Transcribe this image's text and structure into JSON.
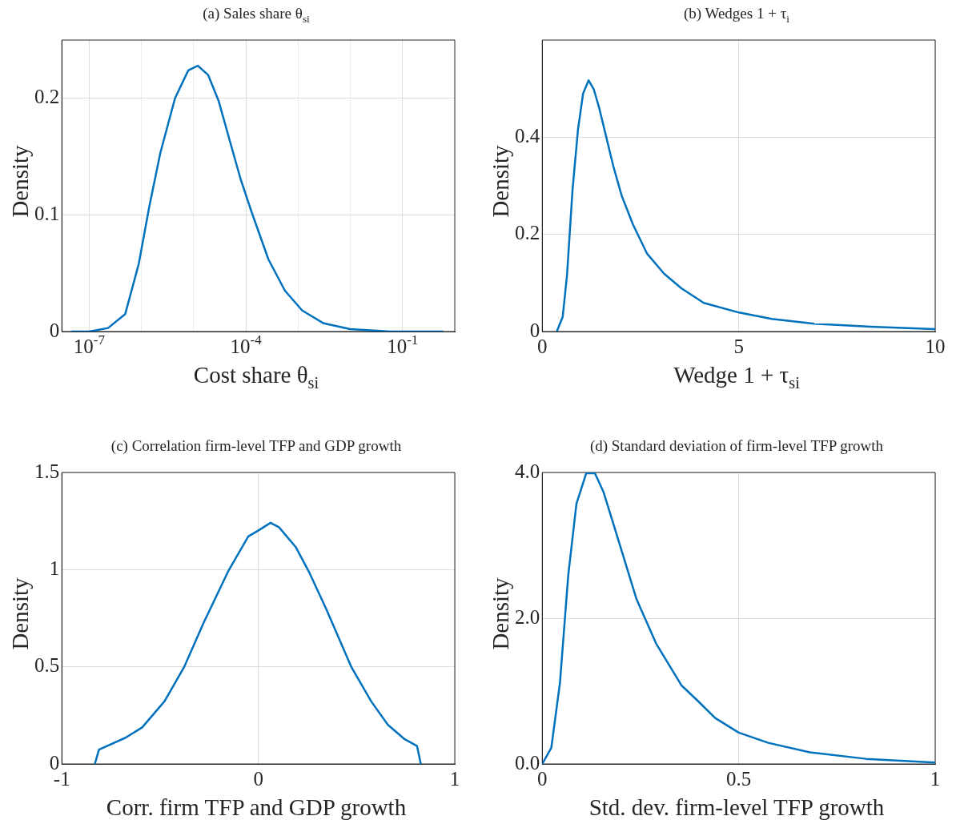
{
  "chart_data": [
    {
      "type": "line",
      "title": "(a) Sales share θ$_{si}$",
      "xlabel": "Cost share θ$_{si}$",
      "ylabel": "Density",
      "log": "x",
      "grid": true,
      "color": "#0072bd",
      "x": [
        4.5e-08,
        1e-07,
        2.3e-07,
        4.9e-07,
        8.9e-07,
        1.4e-06,
        2.3e-06,
        4.4e-06,
        7.9e-06,
        1.2e-05,
        1.9e-05,
        3e-05,
        4.9e-05,
        7.9e-05,
        0.00013,
        0.00027,
        0.00056,
        0.0012,
        0.0031,
        0.01,
        0.058,
        0.6
      ],
      "values": [
        0,
        0,
        0.003,
        0.015,
        0.058,
        0.106,
        0.153,
        0.2,
        0.224,
        0.228,
        0.22,
        0.198,
        0.164,
        0.131,
        0.102,
        0.062,
        0.035,
        0.018,
        0.007,
        0.002,
        0,
        0
      ],
      "xlim": [
        3.2e-08,
        1
      ],
      "xticks": [
        {
          "value": 1e-07,
          "label": "10$^{-7}$"
        },
        {
          "value": 1e-06,
          "label": null
        },
        {
          "value": 1e-05,
          "label": null
        },
        {
          "value": 0.0001,
          "label": "10$^{-4}$"
        },
        {
          "value": 0.001,
          "label": null
        },
        {
          "value": 0.01,
          "label": null
        },
        {
          "value": 0.1,
          "label": "10$^{-1}$"
        }
      ],
      "ylim": [
        0,
        0.25
      ],
      "yticks": [
        0,
        0.1,
        0.2
      ]
    },
    {
      "type": "line",
      "title": "(b) Wedges 1 + τ$_{i}$",
      "xlabel": "Wedge 1 + τ$_{si}$",
      "ylabel": "Density",
      "grid": true,
      "color": "#0072bd",
      "x": [
        0.37,
        0.52,
        0.63,
        0.77,
        0.91,
        1.04,
        1.18,
        1.31,
        1.45,
        1.63,
        1.81,
        2.02,
        2.31,
        2.67,
        3.1,
        3.54,
        4.11,
        5.01,
        5.84,
        6.92,
        8.36,
        10
      ],
      "values": [
        0,
        0.03,
        0.116,
        0.291,
        0.416,
        0.49,
        0.517,
        0.499,
        0.46,
        0.4,
        0.34,
        0.28,
        0.22,
        0.16,
        0.119,
        0.089,
        0.059,
        0.039,
        0.026,
        0.016,
        0.01,
        0.005
      ],
      "xlim": [
        0,
        10
      ],
      "xticks": [
        0,
        5,
        10
      ],
      "ylim": [
        0,
        0.6
      ],
      "yticks": [
        0,
        0.2,
        0.4
      ]
    },
    {
      "type": "line",
      "title": "(c) Correlation firm-level TFP and GDP growth",
      "xlabel": "Corr. firm TFP and GDP growth",
      "ylabel": "Density",
      "grid": true,
      "color": "#0072bd",
      "x": [
        -0.832,
        -0.811,
        -0.676,
        -0.591,
        -0.477,
        -0.378,
        -0.278,
        -0.151,
        -0.051,
        0.006,
        0.062,
        0.105,
        0.19,
        0.261,
        0.347,
        0.474,
        0.574,
        0.659,
        0.744,
        0.808,
        0.827
      ],
      "values": [
        0,
        0.074,
        0.135,
        0.188,
        0.323,
        0.498,
        0.727,
        0.996,
        1.171,
        1.205,
        1.241,
        1.218,
        1.117,
        0.982,
        0.794,
        0.498,
        0.323,
        0.202,
        0.128,
        0.092,
        0
      ],
      "xlim": [
        -1,
        1
      ],
      "xticks": [
        -1,
        0,
        1
      ],
      "ylim": [
        0,
        1.5
      ],
      "yticks": [
        0,
        0.5,
        1,
        1.5
      ]
    },
    {
      "type": "line",
      "title": "(d) Standard deviation of firm-level TFP growth",
      "xlabel": "Std. dev. firm-level TFP growth",
      "ylabel": "Density",
      "grid": true,
      "color": "#0072bd",
      "x": [
        0,
        0.023,
        0.045,
        0.066,
        0.087,
        0.112,
        0.134,
        0.156,
        0.183,
        0.24,
        0.29,
        0.354,
        0.397,
        0.44,
        0.5,
        0.575,
        0.681,
        0.824,
        1
      ],
      "values": [
        0,
        0.22,
        1.11,
        2.58,
        3.57,
        3.99,
        3.99,
        3.73,
        3.26,
        2.26,
        1.65,
        1.08,
        0.86,
        0.63,
        0.43,
        0.29,
        0.16,
        0.07,
        0.02
      ],
      "xlim": [
        0,
        1
      ],
      "xticks": [
        0,
        0.5,
        1
      ],
      "ylim": [
        0,
        4
      ],
      "yticks": [
        {
          "value": 0,
          "label": "0.0"
        },
        {
          "value": 2,
          "label": "2.0"
        },
        {
          "value": 4,
          "label": "4.0"
        }
      ]
    }
  ]
}
